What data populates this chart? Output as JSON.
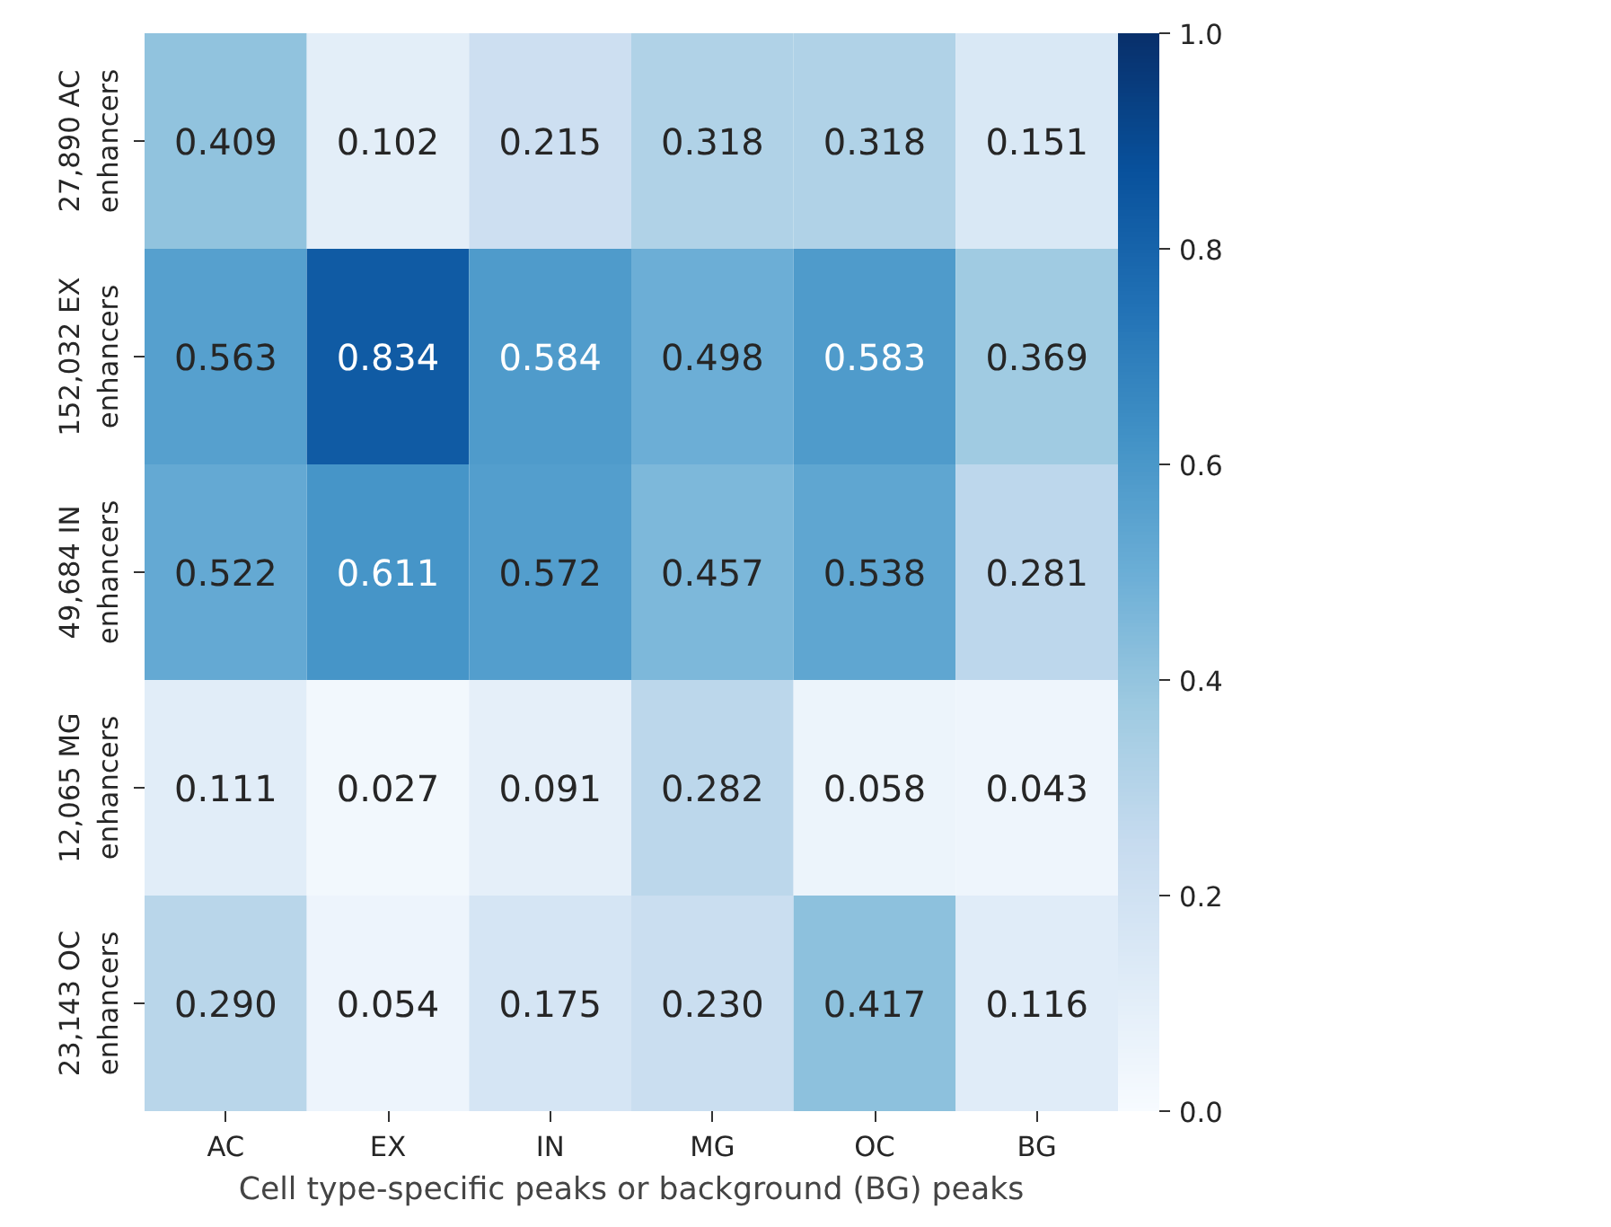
{
  "chart_data": {
    "type": "heatmap",
    "xlabel": "Cell type-specific peaks or background (BG) peaks",
    "categories": [
      "AC",
      "EX",
      "IN",
      "MG",
      "OC",
      "BG"
    ],
    "y_categories": [
      "27,890 AC\nenhancers",
      "152,032 EX\nenhancers",
      "49,684 IN\nenhancers",
      "12,065 MG\nenhancers",
      "23,143 OC\nenhancers"
    ],
    "cells": [
      [
        0.409,
        0.102,
        0.215,
        0.318,
        0.318,
        0.151
      ],
      [
        0.563,
        0.834,
        0.584,
        0.498,
        0.583,
        0.369
      ],
      [
        0.522,
        0.611,
        0.572,
        0.457,
        0.538,
        0.281
      ],
      [
        0.111,
        0.027,
        0.091,
        0.282,
        0.058,
        0.043
      ],
      [
        0.29,
        0.054,
        0.175,
        0.23,
        0.417,
        0.116
      ]
    ],
    "cell_labels": [
      [
        "0.409",
        "0.102",
        "0.215",
        "0.318",
        "0.318",
        "0.151"
      ],
      [
        "0.563",
        "0.834",
        "0.584",
        "0.498",
        "0.583",
        "0.369"
      ],
      [
        "0.522",
        "0.611",
        "0.572",
        "0.457",
        "0.538",
        "0.281"
      ],
      [
        "0.111",
        "0.027",
        "0.091",
        "0.282",
        "0.058",
        "0.043"
      ],
      [
        "0.290",
        "0.054",
        "0.175",
        "0.230",
        "0.417",
        "0.116"
      ]
    ],
    "clim": [
      0.0,
      1.0
    ],
    "cticks": [
      {
        "value": 0.0,
        "label": "0.0"
      },
      {
        "value": 0.2,
        "label": "0.2"
      },
      {
        "value": 0.4,
        "label": "0.4"
      },
      {
        "value": 0.6,
        "label": "0.6"
      },
      {
        "value": 0.8,
        "label": "0.8"
      },
      {
        "value": 1.0,
        "label": "1.0"
      }
    ]
  }
}
